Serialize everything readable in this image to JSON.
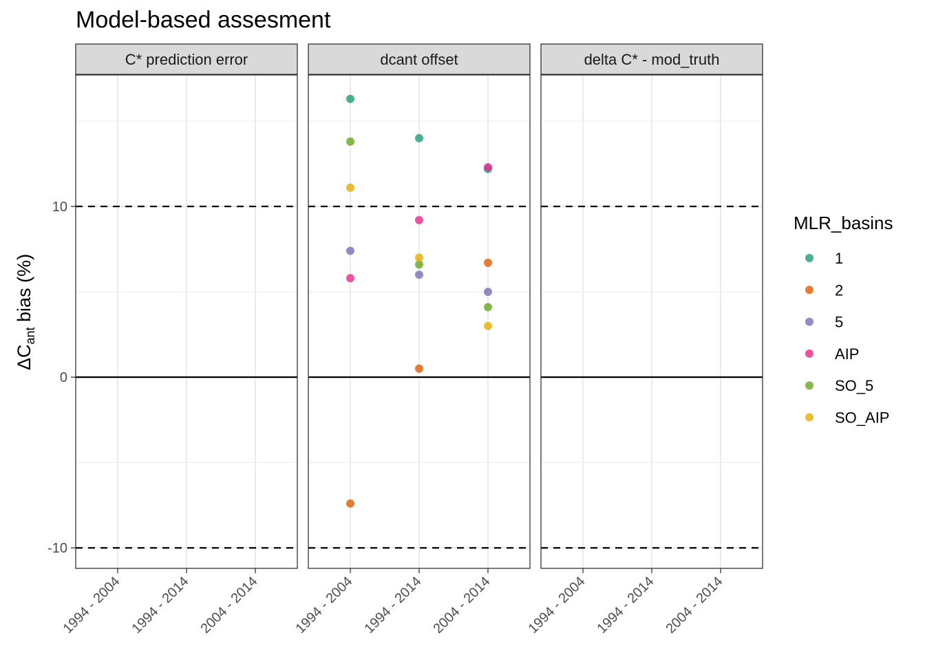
{
  "chart_data": {
    "type": "scatter",
    "title": "Model-based assesment",
    "ylabel": {
      "main": "ΔC",
      "sub": "ant",
      "rest": " bias (%)"
    },
    "ylim": [
      -11.2,
      17.7
    ],
    "yticks": [
      -10,
      0,
      10
    ],
    "ref_lines": {
      "solid": [
        0
      ],
      "dashed": [
        -10,
        10
      ]
    },
    "categories": [
      "1994 - 2004",
      "1994 - 2014",
      "2004 - 2014"
    ],
    "panels": [
      "C* prediction error",
      "dcant offset",
      "delta C* - mod_truth"
    ],
    "legend": {
      "title": "MLR_basins",
      "position": "right"
    },
    "series": [
      {
        "name": "1",
        "color": "#1B9E77",
        "points": [
          {
            "panel": 1,
            "x": "1994 - 2004",
            "y": 16.3
          },
          {
            "panel": 1,
            "x": "1994 - 2014",
            "y": 14.0
          },
          {
            "panel": 1,
            "x": "2004 - 2014",
            "y": 12.2
          }
        ]
      },
      {
        "name": "2",
        "color": "#D95F02",
        "points": [
          {
            "panel": 1,
            "x": "1994 - 2004",
            "y": -7.4
          },
          {
            "panel": 1,
            "x": "1994 - 2014",
            "y": 0.5
          },
          {
            "panel": 1,
            "x": "2004 - 2014",
            "y": 6.7
          }
        ]
      },
      {
        "name": "5",
        "color": "#7570B3",
        "points": [
          {
            "panel": 1,
            "x": "1994 - 2004",
            "y": 7.4
          },
          {
            "panel": 1,
            "x": "1994 - 2014",
            "y": 6.0
          },
          {
            "panel": 1,
            "x": "2004 - 2014",
            "y": 5.0
          }
        ]
      },
      {
        "name": "AIP",
        "color": "#E7298A",
        "points": [
          {
            "panel": 1,
            "x": "1994 - 2004",
            "y": 5.8
          },
          {
            "panel": 1,
            "x": "1994 - 2014",
            "y": 9.2
          },
          {
            "panel": 1,
            "x": "2004 - 2014",
            "y": 12.3
          }
        ]
      },
      {
        "name": "SO_5",
        "color": "#66A61E",
        "points": [
          {
            "panel": 1,
            "x": "1994 - 2004",
            "y": 13.8
          },
          {
            "panel": 1,
            "x": "1994 - 2014",
            "y": 6.6
          },
          {
            "panel": 1,
            "x": "2004 - 2014",
            "y": 4.1
          }
        ]
      },
      {
        "name": "SO_AIP",
        "color": "#E6AB02",
        "points": [
          {
            "panel": 1,
            "x": "1994 - 2004",
            "y": 11.1
          },
          {
            "panel": 1,
            "x": "1994 - 2014",
            "y": 7.0
          },
          {
            "panel": 1,
            "x": "2004 - 2014",
            "y": 3.0
          }
        ]
      }
    ]
  }
}
